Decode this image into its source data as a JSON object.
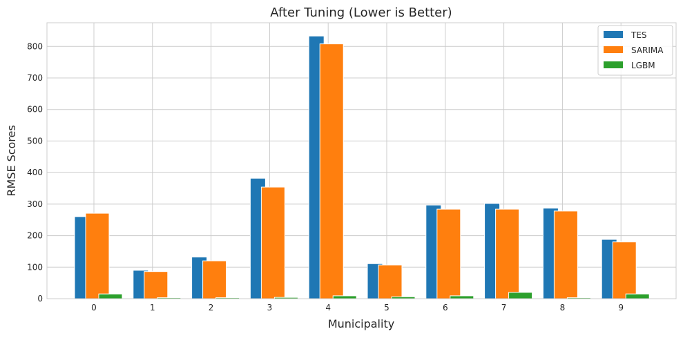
{
  "chart_data": {
    "type": "bar",
    "title": "After Tuning (Lower is Better)",
    "xlabel": "Municipality",
    "ylabel": "RMSE Scores",
    "categories": [
      "0",
      "1",
      "2",
      "3",
      "4",
      "5",
      "6",
      "7",
      "8",
      "9"
    ],
    "series": [
      {
        "name": "TES",
        "color": "#1f77b4",
        "values": [
          260,
          90,
          132,
          382,
          833,
          111,
          297,
          302,
          287,
          188
        ]
      },
      {
        "name": "SARIMA",
        "color": "#ff7f0e",
        "values": [
          271,
          86,
          120,
          354,
          808,
          107,
          284,
          284,
          278,
          180
        ]
      },
      {
        "name": "LGBM",
        "color": "#2ca02c",
        "values": [
          15,
          3,
          3,
          4,
          9,
          6,
          9,
          20,
          3,
          15
        ]
      }
    ],
    "ylim": [
      0,
      875
    ],
    "yticks": [
      0,
      100,
      200,
      300,
      400,
      500,
      600,
      700,
      800
    ],
    "grid": true,
    "legend_position": "top-right"
  }
}
